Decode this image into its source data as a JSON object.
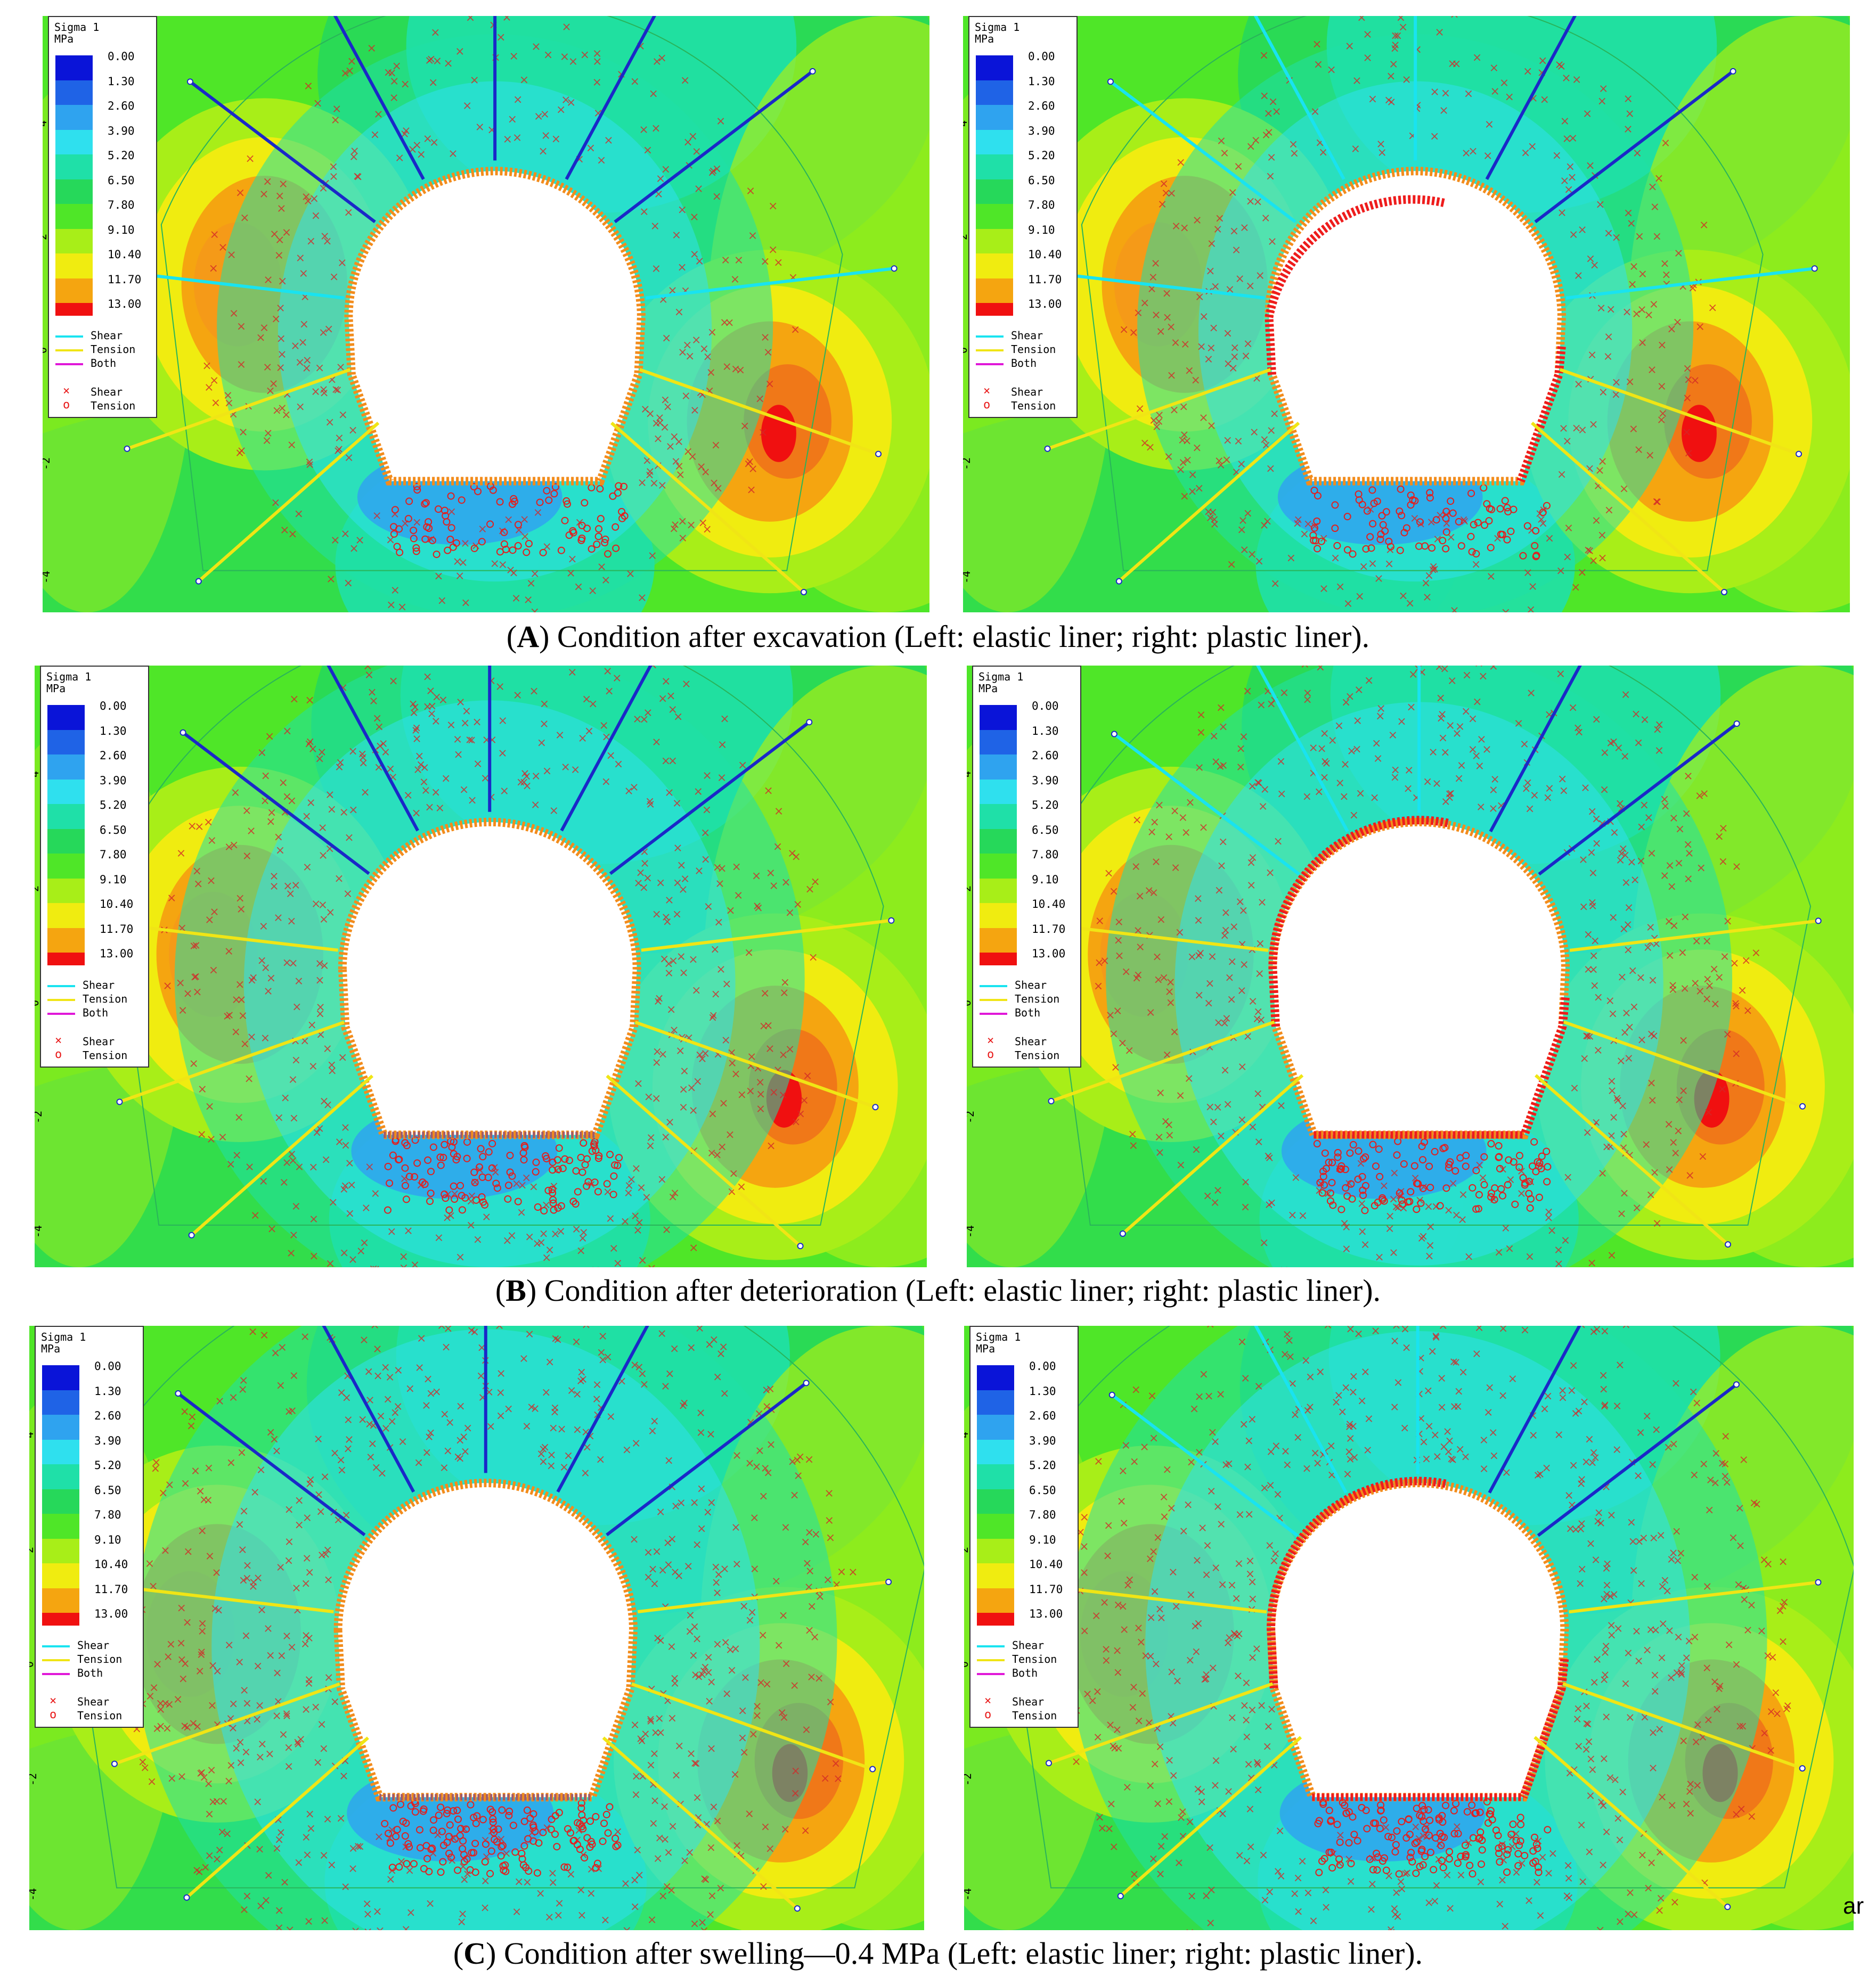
{
  "legend": {
    "title_line1": "Sigma 1",
    "title_line2": "MPa",
    "values": [
      "0.00",
      "1.30",
      "2.60",
      "3.90",
      "5.20",
      "6.50",
      "7.80",
      "9.10",
      "10.40",
      "11.70",
      "13.00"
    ],
    "colors": [
      "#0a14d8",
      "#1f63e6",
      "#2fa3ef",
      "#2fe0ee",
      "#1fe0a8",
      "#26d85a",
      "#4fe628",
      "#a8ee18",
      "#f0ec10",
      "#f5a510",
      "#f01010"
    ],
    "lines": [
      {
        "label": "Shear",
        "color": "#19e3f0"
      },
      {
        "label": "Tension",
        "color": "#f0e515"
      },
      {
        "label": "Both",
        "color": "#e018d8"
      }
    ],
    "markers": [
      {
        "label": "Shear",
        "glyph": "×"
      },
      {
        "label": "Tension",
        "glyph": "o"
      }
    ]
  },
  "axis_ticks": [
    "4",
    "2",
    "0",
    "-2",
    "-4"
  ],
  "captions": [
    {
      "letter": "A",
      "text": ") Condition after excavation (Left: elastic liner; right: plastic liner)."
    },
    {
      "letter": "B",
      "text": ") Condition after deterioration (Left: elastic liner; right: plastic liner)."
    },
    {
      "letter": "C",
      "text": ") Condition after swelling—0.4 MPa (Left: elastic liner; right: plastic liner)."
    }
  ],
  "stray_text": "ar"
}
